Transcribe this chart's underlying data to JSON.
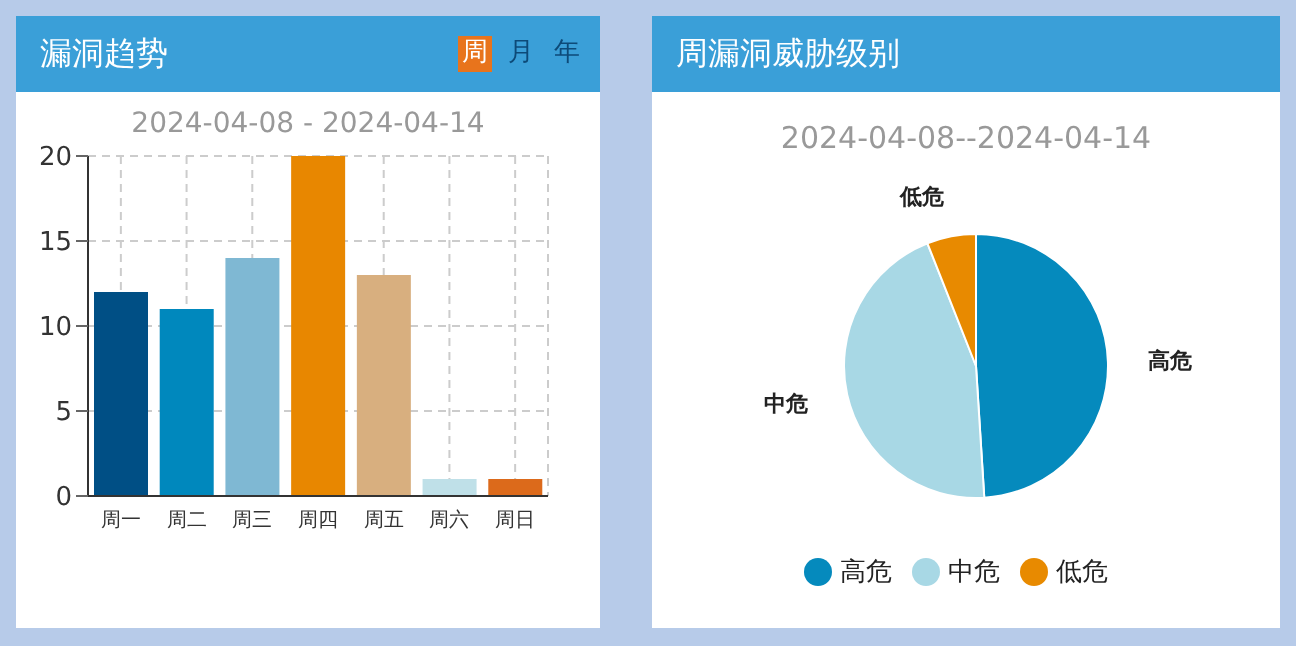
{
  "chart_data": [
    {
      "type": "bar",
      "title": "漏洞趋势",
      "subtitle": "2024-04-08 - 2024-04-14",
      "annotations": [
        "周",
        "月",
        "年"
      ],
      "categories": [
        "周一",
        "周二",
        "周三",
        "周四",
        "周五",
        "周六",
        "周日"
      ],
      "values": [
        12,
        11,
        14,
        20,
        13,
        1,
        1
      ],
      "colors": [
        "#004f85",
        "#0088bd",
        "#7fb8d3",
        "#e88700",
        "#d8af7f",
        "#bfe0e8",
        "#dc6a1b"
      ],
      "ylim": [
        0,
        20
      ],
      "yticks": [
        0,
        5,
        10,
        15,
        20
      ],
      "grid": true
    },
    {
      "type": "pie",
      "title": "周漏洞威胁级别",
      "subtitle": "2024-04-08--2024-04-14",
      "categories": [
        "高危",
        "中危",
        "低危"
      ],
      "values": [
        49,
        45,
        6
      ],
      "colors": [
        "#058abd",
        "#a8d8e5",
        "#e88a00"
      ],
      "legend": "bottom"
    }
  ]
}
